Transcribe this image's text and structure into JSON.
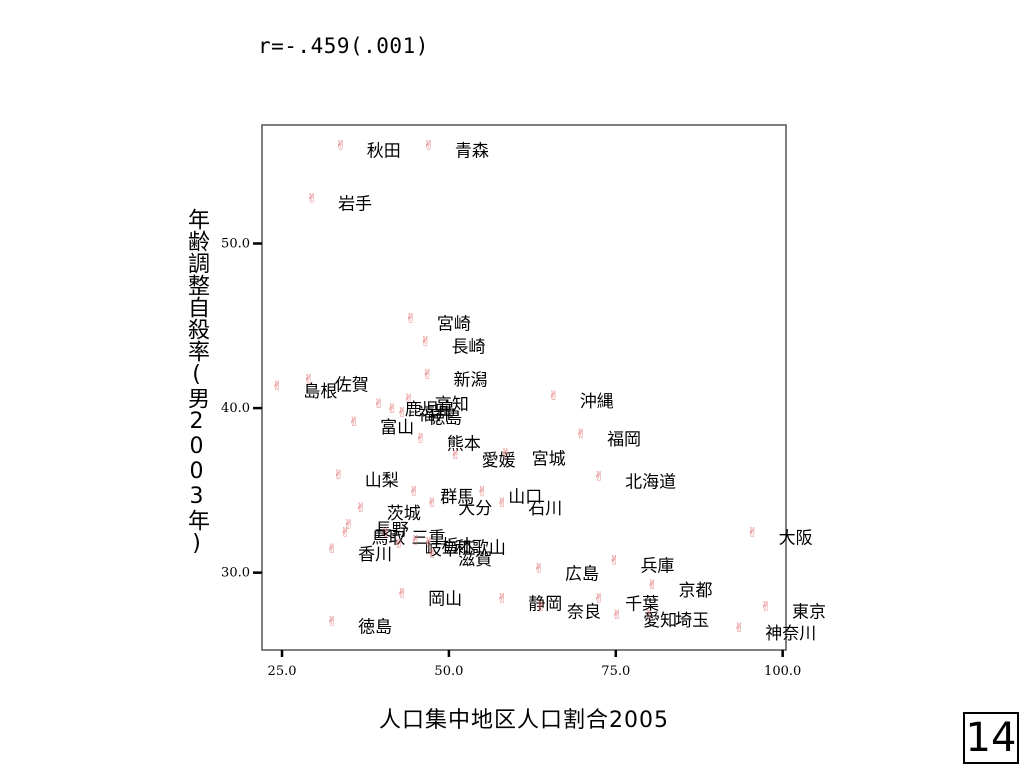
{
  "chart_data": {
    "type": "scatter",
    "annotation": "r=-.459(.001)",
    "xlabel": "人口集中地区人口割合2005",
    "ylabel": "年齢調整自殺率(男2003年)",
    "xlim": [
      22,
      100.5
    ],
    "ylim": [
      25.3,
      57.2
    ],
    "xticks": [
      25.0,
      50.0,
      75.0,
      100.0
    ],
    "xtick_labels": [
      "25.0",
      "50.0",
      "75.0",
      "100.0"
    ],
    "yticks": [
      30.0,
      40.0,
      50.0
    ],
    "ytick_labels": [
      "30.0",
      "40.0",
      "50.0"
    ],
    "marker_color": "#e07070",
    "points": [
      {
        "label": "秋田",
        "x": 33.8,
        "y": 56.0
      },
      {
        "label": "青森",
        "x": 47.0,
        "y": 56.0
      },
      {
        "label": "岩手",
        "x": 29.5,
        "y": 52.8
      },
      {
        "label": "宮崎",
        "x": 44.3,
        "y": 45.5
      },
      {
        "label": "長崎",
        "x": 46.5,
        "y": 44.1
      },
      {
        "label": "新潟",
        "x": 46.8,
        "y": 42.1
      },
      {
        "label": "佐賀",
        "x": 29.0,
        "y": 41.8
      },
      {
        "label": "島根",
        "x": 24.3,
        "y": 41.4
      },
      {
        "label": "沖縄",
        "x": 65.7,
        "y": 40.8
      },
      {
        "label": "高知",
        "x": 44.0,
        "y": 40.6
      },
      {
        "label": "鹿児島",
        "x": 39.5,
        "y": 40.3
      },
      {
        "label": "福井",
        "x": 41.5,
        "y": 40.0
      },
      {
        "label": "徳島",
        "x": 43.0,
        "y": 39.8
      },
      {
        "label": "富山",
        "x": 35.8,
        "y": 39.2
      },
      {
        "label": "福岡",
        "x": 69.8,
        "y": 38.5
      },
      {
        "label": "熊本",
        "x": 45.8,
        "y": 38.2
      },
      {
        "label": "愛媛",
        "x": 51.0,
        "y": 37.2
      },
      {
        "label": "宮城",
        "x": 58.5,
        "y": 37.3
      },
      {
        "label": "北海道",
        "x": 72.5,
        "y": 35.9
      },
      {
        "label": "山梨",
        "x": 33.5,
        "y": 36.0
      },
      {
        "label": "群馬",
        "x": 44.8,
        "y": 35.0
      },
      {
        "label": "山口",
        "x": 55.0,
        "y": 35.0
      },
      {
        "label": "大分",
        "x": 47.5,
        "y": 34.3
      },
      {
        "label": "石川",
        "x": 58.0,
        "y": 34.3
      },
      {
        "label": "茨城",
        "x": 36.8,
        "y": 34.0
      },
      {
        "label": "長野",
        "x": 35.0,
        "y": 33.0
      },
      {
        "label": "三重",
        "x": 40.5,
        "y": 32.5
      },
      {
        "label": "鳥取",
        "x": 34.5,
        "y": 32.5
      },
      {
        "label": "岐阜",
        "x": 42.5,
        "y": 31.8
      },
      {
        "label": "栃木",
        "x": 45.0,
        "y": 32.0
      },
      {
        "label": "和歌山",
        "x": 47.0,
        "y": 31.9
      },
      {
        "label": "香川",
        "x": 32.5,
        "y": 31.5
      },
      {
        "label": "滋賀",
        "x": 47.5,
        "y": 31.2
      },
      {
        "label": "大阪",
        "x": 95.5,
        "y": 32.5
      },
      {
        "label": "兵庫",
        "x": 74.8,
        "y": 30.8
      },
      {
        "label": "広島",
        "x": 63.5,
        "y": 30.3
      },
      {
        "label": "京都",
        "x": 80.5,
        "y": 29.3
      },
      {
        "label": "岡山",
        "x": 43.0,
        "y": 28.8
      },
      {
        "label": "静岡",
        "x": 58.0,
        "y": 28.5
      },
      {
        "label": "奈良",
        "x": 63.8,
        "y": 28.0
      },
      {
        "label": "千葉",
        "x": 72.5,
        "y": 28.5
      },
      {
        "label": "埼玉",
        "x": 80.0,
        "y": 27.5
      },
      {
        "label": "愛知",
        "x": 75.2,
        "y": 27.5
      },
      {
        "label": "東京",
        "x": 97.5,
        "y": 28.0
      },
      {
        "label": "神奈川",
        "x": 93.5,
        "y": 26.7
      },
      {
        "label": "徳島",
        "x": 32.5,
        "y": 27.1
      }
    ]
  },
  "page_number": "14"
}
